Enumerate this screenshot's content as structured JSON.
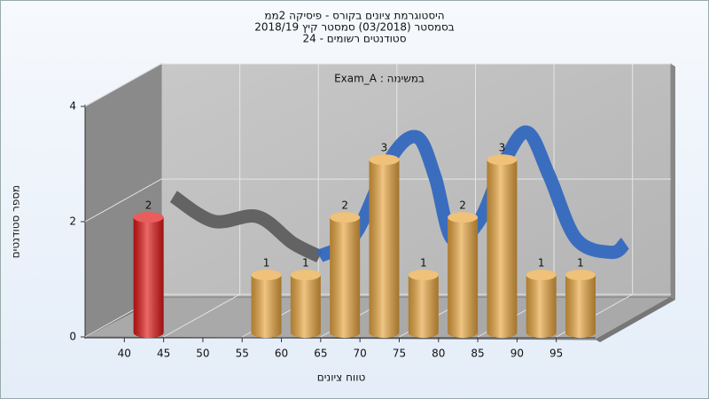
{
  "chart_data": {
    "type": "histogram",
    "title": "היסטוגרמת ציונים בקורס - פיסיקה 2ממ",
    "subtitle": "בסמסטר  (03/2018)  סמסטר קיץ 2018/19",
    "subtitle2": "סטודנטים רשומים - 24",
    "annotation": "Exam_A : במשימה",
    "xlabel": "טווח ציונים",
    "ylabel": "מספר סטודנטים",
    "bins": [
      40,
      45,
      50,
      55,
      60,
      65,
      70,
      75,
      80,
      85,
      90,
      95,
      100
    ],
    "counts": [
      2,
      0,
      0,
      1,
      1,
      2,
      3,
      1,
      2,
      3,
      1,
      1
    ],
    "colors": [
      "#e01818",
      "#e8a640",
      "#e8a640",
      "#e8a640",
      "#e8a640",
      "#e8a640",
      "#e8a640",
      "#e8a640",
      "#e8a640",
      "#e8a640",
      "#e8a640",
      "#e8a640"
    ],
    "xlim": [
      35,
      100
    ],
    "xticks": [
      40,
      45,
      50,
      55,
      60,
      65,
      70,
      75,
      80,
      85,
      90,
      95
    ],
    "x_grid": [
      45,
      55,
      65,
      75,
      85,
      95
    ],
    "ylim": [
      0,
      4
    ],
    "yticks": [
      0,
      2,
      4
    ],
    "grid": true,
    "curves": [
      {
        "color": "#5e5e5e",
        "x": [
          41.7,
          46.8,
          52.4,
          56.9,
          60.3
        ],
        "values": [
          2.09,
          1.66,
          1.74,
          1.28,
          1.05
        ]
      },
      {
        "color": "#3468bf",
        "x": [
          60.3,
          64.8,
          69.3,
          72.7,
          75,
          77.2,
          80.6,
          84,
          86.8,
          89.6,
          93,
          97.5,
          99.2
        ],
        "values": [
          1.05,
          1.43,
          2.74,
          3.12,
          2.43,
          1.35,
          1.66,
          2.74,
          3.2,
          2.43,
          1.35,
          1.12,
          1.28
        ]
      }
    ]
  }
}
